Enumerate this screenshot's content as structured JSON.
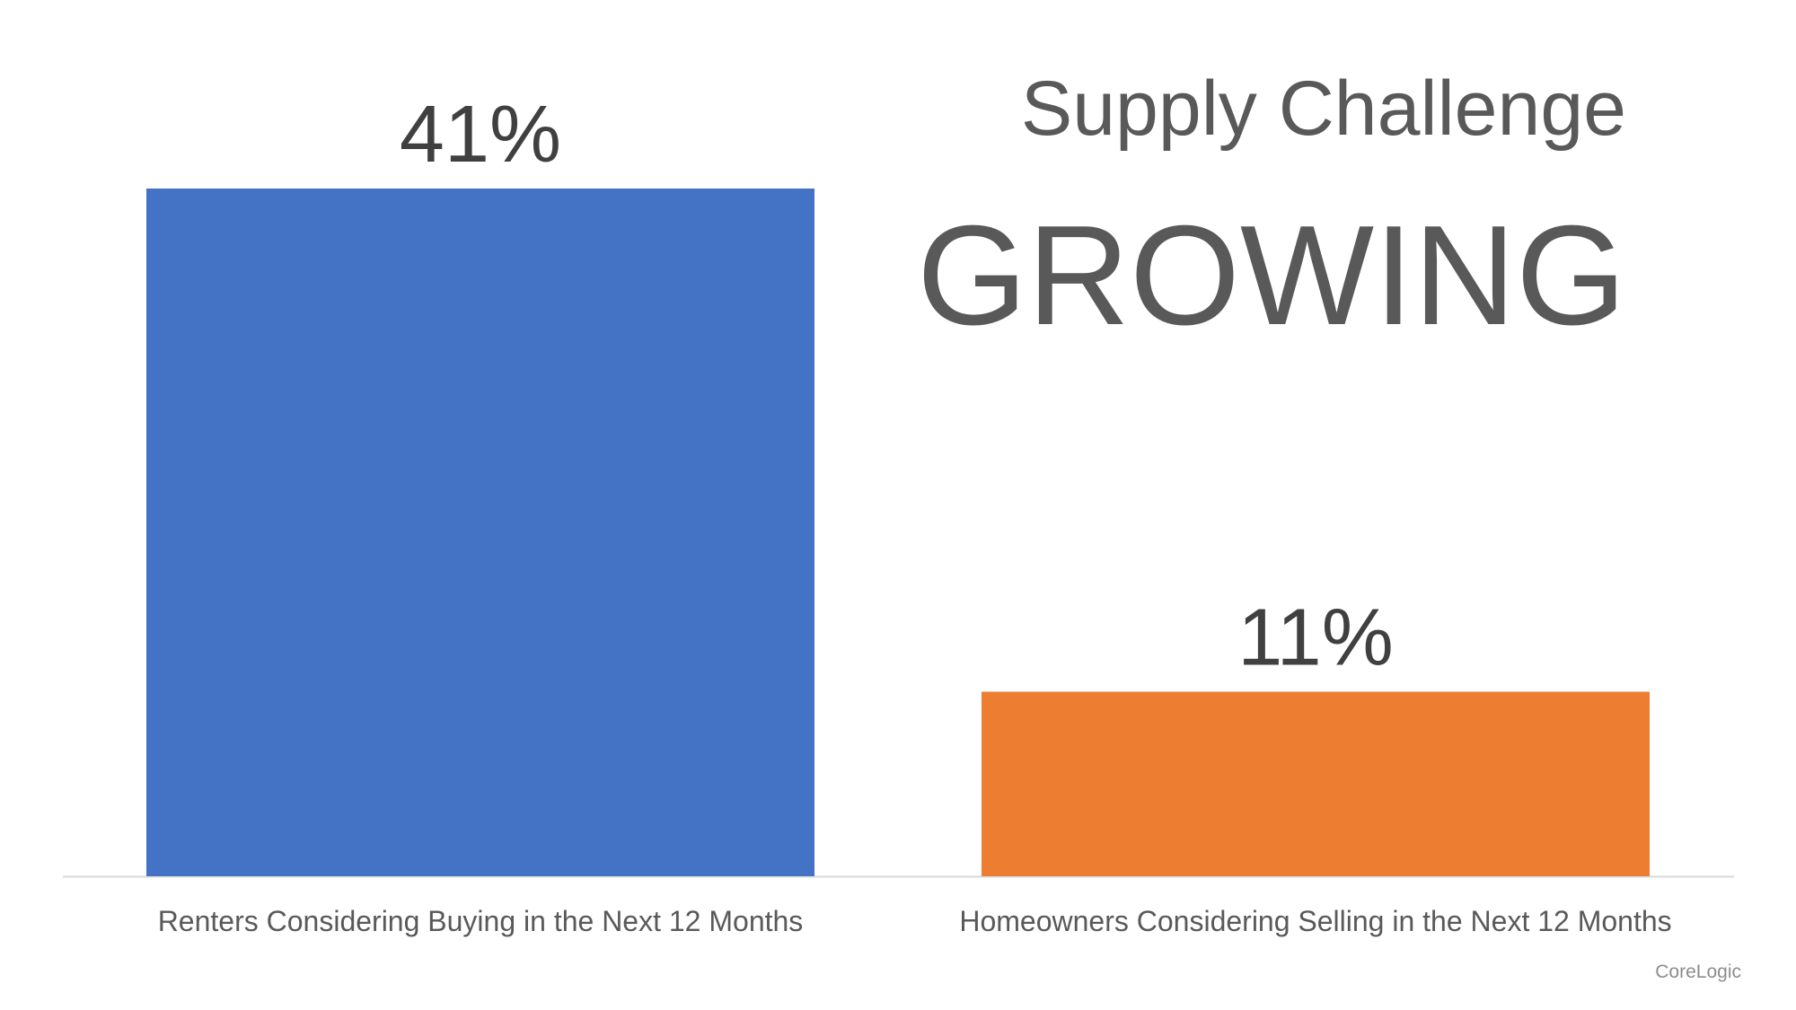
{
  "chart_data": {
    "type": "bar",
    "title": "Supply Challenge",
    "subtitle": "GROWING",
    "categories": [
      "Renters Considering Buying in the Next 12 Months",
      "Homeowners Considering Selling in the Next 12 Months"
    ],
    "values": [
      41,
      11
    ],
    "value_labels": [
      "41%",
      "11%"
    ],
    "colors": [
      "#4472c4",
      "#ed7d31"
    ],
    "source": "CoreLogic"
  }
}
